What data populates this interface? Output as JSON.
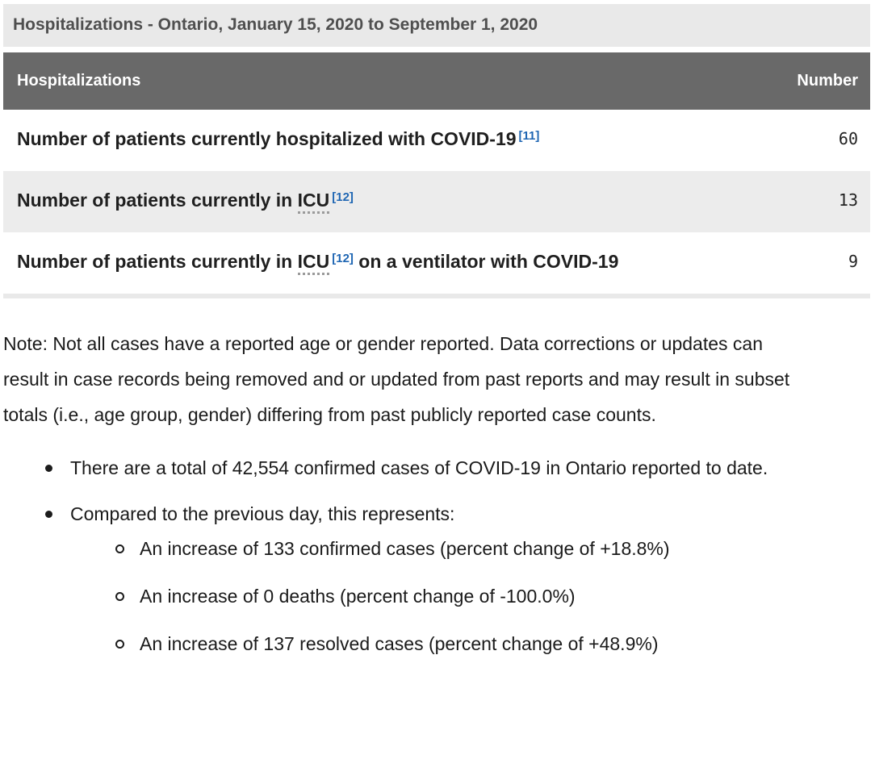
{
  "caption": "Hospitalizations - Ontario, January 15, 2020 to September 1, 2020",
  "table": {
    "header": {
      "col1": "Hospitalizations",
      "col2": "Number"
    },
    "rows": [
      {
        "pre": "Number of patients currently hospitalized with COVID-19",
        "abbr": "",
        "sup": "[11]",
        "post": "",
        "value": "60"
      },
      {
        "pre": "Number of patients currently in ",
        "abbr": "ICU",
        "sup": "[12]",
        "post": "",
        "value": "13"
      },
      {
        "pre": "Number of patients currently in ",
        "abbr": "ICU",
        "sup": "[12]",
        "post": " on a ventilator with COVID-19",
        "value": "9"
      }
    ]
  },
  "notes": {
    "note_paragraph": "Note: Not all cases have a reported age or gender reported. Data corrections or updates can result in case records being removed and or updated from past reports and may result in subset totals (i.e., age group, gender) differing from past publicly reported case counts.",
    "bullets": [
      {
        "text": "There are a total of 42,554 confirmed cases of COVID-19 in Ontario reported to date.",
        "sub": []
      },
      {
        "text": "Compared to the previous day, this represents:",
        "sub": [
          "An increase of 133 confirmed cases (percent change of +18.8%)",
          "An increase of 0 deaths (percent change of -100.0%)",
          "An increase of 137 resolved cases (percent change of +48.9%)"
        ]
      }
    ]
  },
  "colors": {
    "caption_bg": "#e9e9e9",
    "caption_text": "#4f4f4f",
    "header_bg": "#696969",
    "header_text": "#ffffff",
    "row_alt_bg": "#ececec",
    "body_text": "#1c1c1c",
    "footnote_link_blue": "#1f66b3",
    "abbr_dotted_underline": "#9a9a9a"
  }
}
